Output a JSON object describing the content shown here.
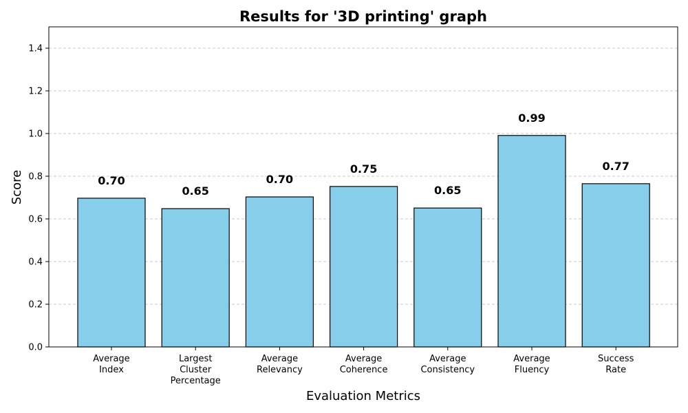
{
  "chart_data": {
    "type": "bar",
    "title": "Results for '3D printing' graph",
    "xlabel": "Evaluation Metrics",
    "ylabel": "Score",
    "ylim": [
      0,
      1.5
    ],
    "yticks": [
      "0.0",
      "0.2",
      "0.4",
      "0.6",
      "0.8",
      "1.0",
      "1.2",
      "1.4"
    ],
    "grid": "horizontal dashed",
    "bar_color": "#87CEEB",
    "edge_color": "#000000",
    "categories": [
      [
        "Average",
        "Index"
      ],
      [
        "Largest",
        "Cluster",
        "Percentage"
      ],
      [
        "Average",
        "Relevancy"
      ],
      [
        "Average",
        "Coherence"
      ],
      [
        "Average",
        "Consistency"
      ],
      [
        "Average",
        "Fluency"
      ],
      [
        "Success",
        "Rate"
      ]
    ],
    "values": [
      0.697,
      0.648,
      0.703,
      0.752,
      0.651,
      0.991,
      0.765
    ],
    "data_labels": [
      "0.70",
      "0.65",
      "0.70",
      "0.75",
      "0.65",
      "0.99",
      "0.77"
    ]
  }
}
